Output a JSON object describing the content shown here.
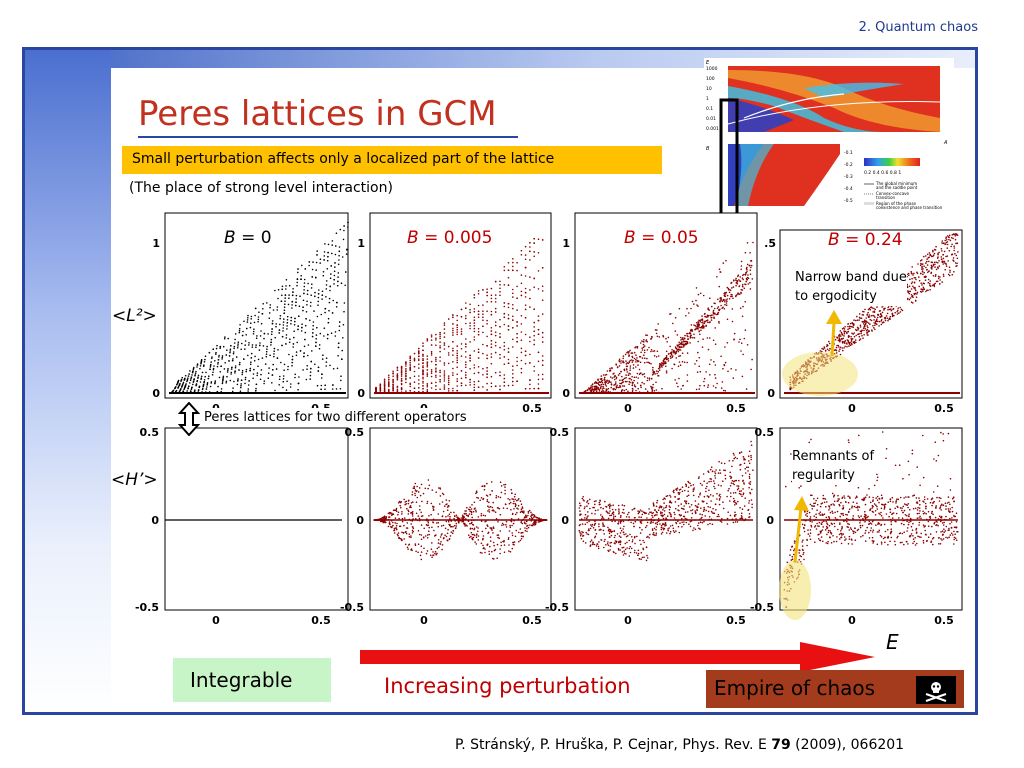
{
  "section": "2. Quantum chaos",
  "title": "Peres lattices in GCM",
  "highlight": "Small perturbation affects only a localized part of the lattice",
  "subtitle": "(The place of strong level interaction)",
  "row_labels": {
    "top": "<L²>",
    "bottom": "<H’>"
  },
  "panels": [
    {
      "label_var": "B",
      "label_val": " = 0",
      "color": "#000000"
    },
    {
      "label_var": "B",
      "label_val": " = 0.005",
      "color": "#c00000"
    },
    {
      "label_var": "B",
      "label_val": " = 0.05",
      "color": "#c00000"
    },
    {
      "label_var": "B",
      "label_val": " = 0.24",
      "color": "#c00000"
    }
  ],
  "ticks": {
    "top_y1": "1",
    "top_y0": "0",
    "x0": "0",
    "x05": "0.5",
    "bot_yp": "0.5",
    "bot_y0": "0",
    "bot_ym": "-0.5",
    "partial": ".5"
  },
  "annotations": {
    "operators": "Peres lattices for two different operators",
    "narrow_band_1": "Narrow band due",
    "narrow_band_2": "to ergodicity",
    "remnants_1": "Remnants of",
    "remnants_2": "regularity"
  },
  "axis_e": "E",
  "integrable": "Integrable",
  "increasing": "Increasing perturbation",
  "empire": "Empire of chaos",
  "reference_pre": "P. Stránský, P. Hruška, P. Cejnar, Phys. Rev. E ",
  "reference_vol": "79",
  "reference_post": " (2009), 066201",
  "inset": {
    "legend_1": "The global minimum",
    "legend_2": "and the saddle point",
    "legend_3": "Convex-concave",
    "legend_4": "transition",
    "legend_5": "Region of the phase",
    "legend_6": "coexistence and phase transition",
    "axis_b": "B",
    "axis_a": "A",
    "axis_e": "E",
    "colorbar": "0.2  0.4  0.6  0.8  1",
    "ticks_y": [
      "1000",
      "100",
      "10",
      "1",
      "0.1",
      "0.01",
      "0.001"
    ],
    "ticks_y2": [
      "-0.1",
      "-0.2",
      "-0.3",
      "-0.4",
      "-0.5"
    ]
  }
}
